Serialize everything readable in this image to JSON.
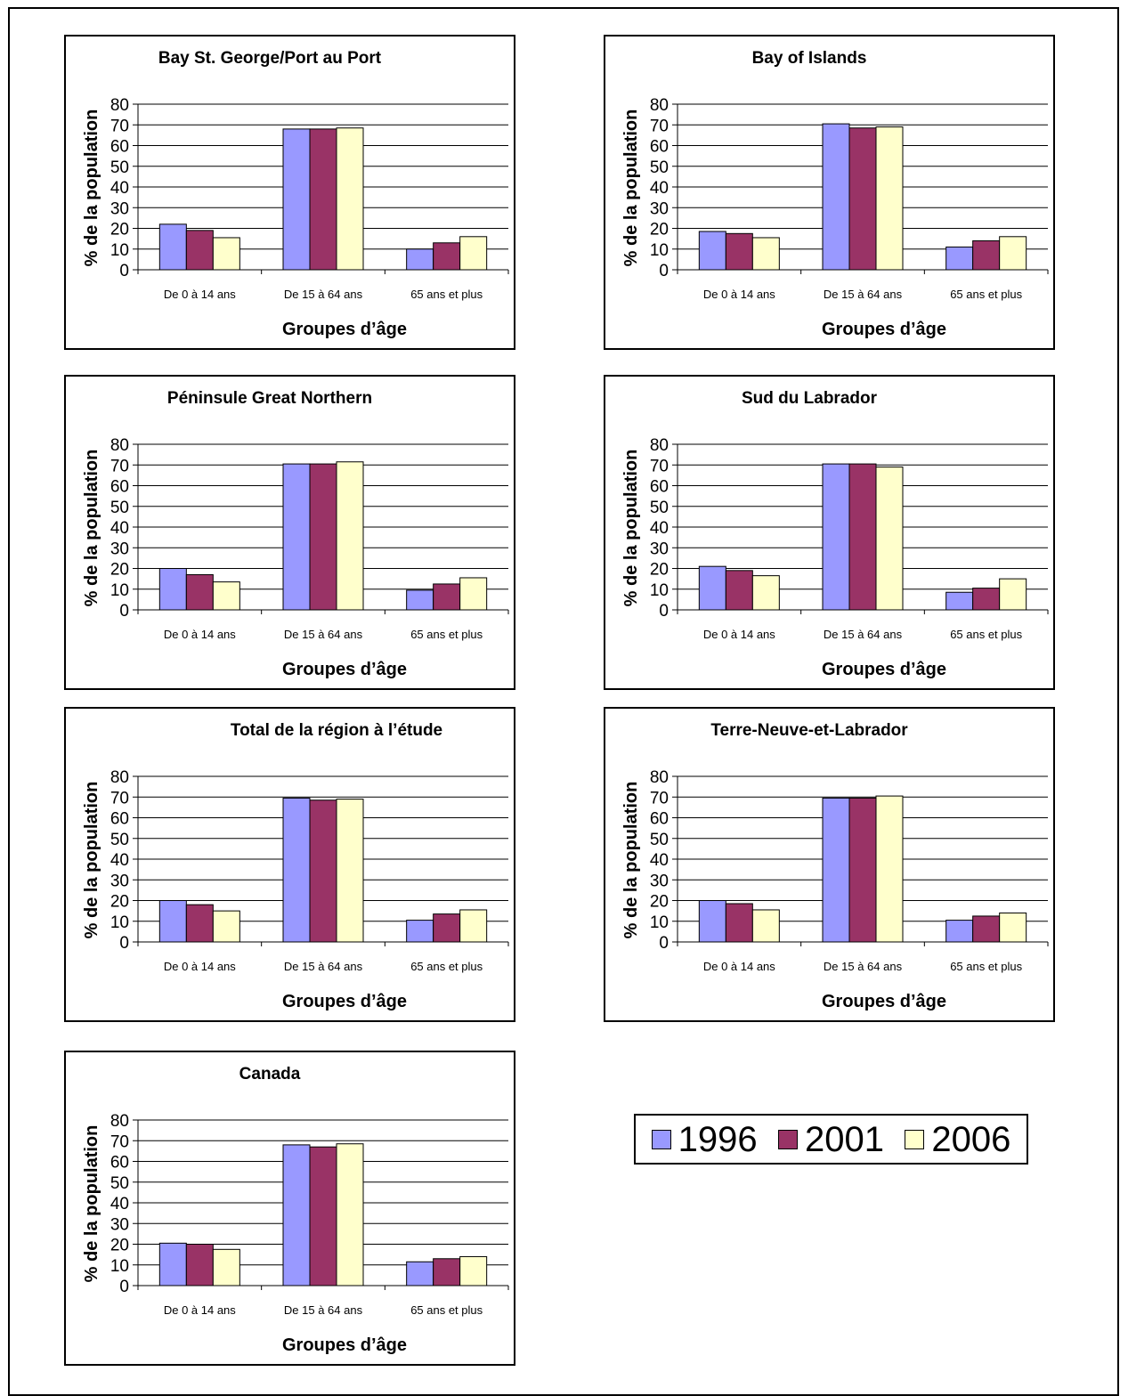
{
  "axis_labels": {
    "xlabel": "Groupes d’âge",
    "ylabel": "% de la population"
  },
  "legend": {
    "items": [
      {
        "label": "1996",
        "color": "#9999ff"
      },
      {
        "label": "2001",
        "color": "#993366"
      },
      {
        "label": "2006",
        "color": "#ffffcc"
      }
    ]
  },
  "chart_data": [
    {
      "type": "bar",
      "title": "Bay St. George/Port au Port",
      "categories": [
        "De 0 à 14 ans",
        "De 15 à 64 ans",
        "65 ans et plus"
      ],
      "series": [
        {
          "name": "1996",
          "values": [
            22,
            68,
            10
          ]
        },
        {
          "name": "2001",
          "values": [
            19,
            68,
            13
          ]
        },
        {
          "name": "2006",
          "values": [
            15.5,
            68.5,
            16
          ]
        }
      ],
      "ylim": [
        0,
        80
      ],
      "yticks": [
        0,
        10,
        20,
        30,
        40,
        50,
        60,
        70,
        80
      ],
      "xlabel": "Groupes d’âge",
      "ylabel": "% de la population",
      "grid": true
    },
    {
      "type": "bar",
      "title": "Bay of Islands",
      "categories": [
        "De 0 à 14 ans",
        "De 15 à 64 ans",
        "65 ans et plus"
      ],
      "series": [
        {
          "name": "1996",
          "values": [
            18.5,
            70.5,
            11
          ]
        },
        {
          "name": "2001",
          "values": [
            17.5,
            68.5,
            14
          ]
        },
        {
          "name": "2006",
          "values": [
            15.5,
            69,
            16
          ]
        }
      ],
      "ylim": [
        0,
        80
      ],
      "yticks": [
        0,
        10,
        20,
        30,
        40,
        50,
        60,
        70,
        80
      ],
      "xlabel": "Groupes d’âge",
      "ylabel": "% de la population",
      "grid": true
    },
    {
      "type": "bar",
      "title": "Péninsule Great Northern",
      "categories": [
        "De 0 à 14 ans",
        "De 15 à 64 ans",
        "65 ans et plus"
      ],
      "series": [
        {
          "name": "1996",
          "values": [
            20,
            70.5,
            9.5
          ]
        },
        {
          "name": "2001",
          "values": [
            17,
            70.5,
            12.5
          ]
        },
        {
          "name": "2006",
          "values": [
            13.5,
            71.5,
            15.5
          ]
        }
      ],
      "ylim": [
        0,
        80
      ],
      "yticks": [
        0,
        10,
        20,
        30,
        40,
        50,
        60,
        70,
        80
      ],
      "xlabel": "Groupes d’âge",
      "ylabel": "% de la population",
      "grid": true
    },
    {
      "type": "bar",
      "title": "Sud du Labrador",
      "categories": [
        "De 0 à 14 ans",
        "De 15 à 64 ans",
        "65 ans et plus"
      ],
      "series": [
        {
          "name": "1996",
          "values": [
            21,
            70.5,
            8.5
          ]
        },
        {
          "name": "2001",
          "values": [
            19,
            70.5,
            10.5
          ]
        },
        {
          "name": "2006",
          "values": [
            16.5,
            69,
            15
          ]
        }
      ],
      "ylim": [
        0,
        80
      ],
      "yticks": [
        0,
        10,
        20,
        30,
        40,
        50,
        60,
        70,
        80
      ],
      "xlabel": "Groupes d’âge",
      "ylabel": "% de la population",
      "grid": true
    },
    {
      "type": "bar",
      "title": "Total de la région à l’étude",
      "categories": [
        "De 0 à 14 ans",
        "De 15 à 64 ans",
        "65 ans et plus"
      ],
      "series": [
        {
          "name": "1996",
          "values": [
            20,
            69.5,
            10.5
          ]
        },
        {
          "name": "2001",
          "values": [
            18,
            68.5,
            13.5
          ]
        },
        {
          "name": "2006",
          "values": [
            15,
            69,
            15.5
          ]
        }
      ],
      "ylim": [
        0,
        80
      ],
      "yticks": [
        0,
        10,
        20,
        30,
        40,
        50,
        60,
        70,
        80
      ],
      "xlabel": "Groupes d’âge",
      "ylabel": "% de la population",
      "grid": true
    },
    {
      "type": "bar",
      "title": "Terre-Neuve-et-Labrador",
      "categories": [
        "De 0 à 14 ans",
        "De 15 à 64 ans",
        "65 ans et plus"
      ],
      "series": [
        {
          "name": "1996",
          "values": [
            20,
            69.5,
            10.5
          ]
        },
        {
          "name": "2001",
          "values": [
            18.5,
            69.5,
            12.5
          ]
        },
        {
          "name": "2006",
          "values": [
            15.5,
            70.5,
            14
          ]
        }
      ],
      "ylim": [
        0,
        80
      ],
      "yticks": [
        0,
        10,
        20,
        30,
        40,
        50,
        60,
        70,
        80
      ],
      "xlabel": "Groupes d’âge",
      "ylabel": "% de la population",
      "grid": true
    },
    {
      "type": "bar",
      "title": "Canada",
      "categories": [
        "De 0 à 14 ans",
        "De 15 à 64 ans",
        "65 ans et plus"
      ],
      "series": [
        {
          "name": "1996",
          "values": [
            20.5,
            68,
            11.5
          ]
        },
        {
          "name": "2001",
          "values": [
            20,
            67,
            13
          ]
        },
        {
          "name": "2006",
          "values": [
            17.5,
            68.5,
            14
          ]
        }
      ],
      "ylim": [
        0,
        80
      ],
      "yticks": [
        0,
        10,
        20,
        30,
        40,
        50,
        60,
        70,
        80
      ],
      "xlabel": "Groupes d’âge",
      "ylabel": "% de la population",
      "grid": true
    }
  ]
}
